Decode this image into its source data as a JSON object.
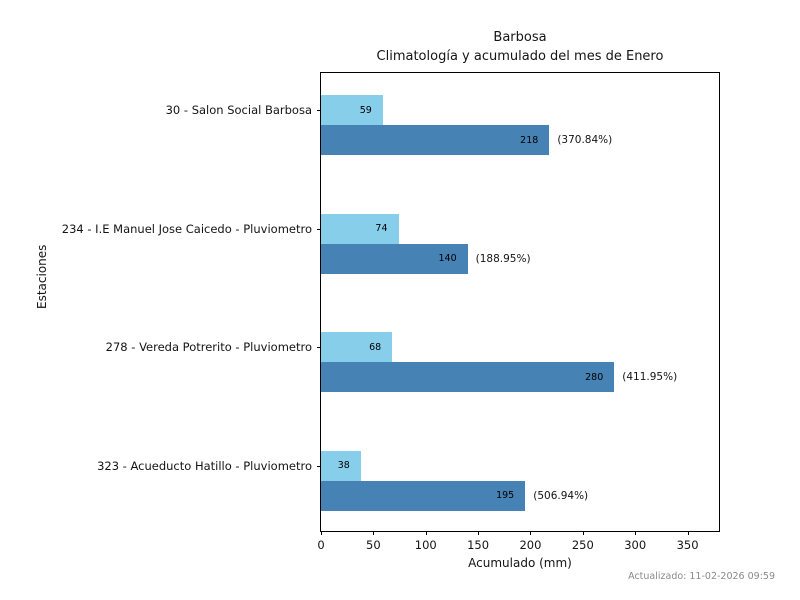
{
  "title": {
    "line1": "Barbosa",
    "line2": "Climatología y acumulado del mes de Enero"
  },
  "footer": {
    "updated": "Actualizado: 11-02-2026 09:59"
  },
  "chart_data": {
    "type": "bar",
    "orientation": "horizontal",
    "title": "Barbosa — Climatología y acumulado del mes de Enero",
    "xlabel": "Acumulado (mm)",
    "ylabel": "Estaciones",
    "xlim": [
      0,
      380
    ],
    "xticks": [
      0,
      50,
      100,
      150,
      200,
      250,
      300,
      350
    ],
    "grid": false,
    "legend": "none",
    "categories": [
      "30 - Salon Social Barbosa",
      "234 - I.E Manuel Jose Caicedo - Pluviometro",
      "278 - Vereda Potrerito - Pluviometro",
      "323 - Acueducto Hatillo - Pluviometro"
    ],
    "series": [
      {
        "name": "climatologia",
        "color": "#87CEEB",
        "values": [
          59,
          74,
          68,
          38
        ],
        "labels": [
          "59",
          "74",
          "68",
          "38"
        ]
      },
      {
        "name": "acumulado",
        "color": "#4682B4",
        "values": [
          218,
          140,
          280,
          195
        ],
        "labels": [
          "218",
          "140",
          "280",
          "195"
        ],
        "percent_labels": [
          "(370.84%)",
          "(188.95%)",
          "(411.95%)",
          "(506.94%)"
        ]
      }
    ]
  }
}
